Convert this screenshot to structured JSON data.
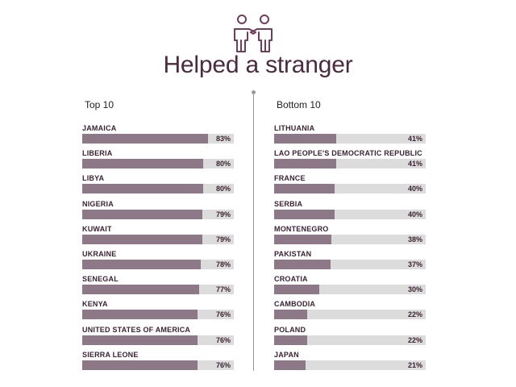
{
  "title": "Helped a stranger",
  "icon": "two-people-shaking-hands-icon",
  "colors": {
    "bar": "#8c7887",
    "track": "#dcdcdc",
    "text": "#3b2232",
    "title": "#4a2b3f"
  },
  "chart_data": [
    {
      "type": "bar",
      "orientation": "horizontal",
      "title": "Top 10",
      "xlim": [
        0,
        100
      ],
      "categories": [
        "JAMAICA",
        "LIBERIA",
        "LIBYA",
        "NIGERIA",
        "KUWAIT",
        "UKRAINE",
        "SENEGAL",
        "KENYA",
        "UNITED STATES OF AMERICA",
        "SIERRA LEONE"
      ],
      "values": [
        83,
        80,
        80,
        79,
        79,
        78,
        77,
        76,
        76,
        76
      ],
      "labels": [
        "83%",
        "80%",
        "80%",
        "79%",
        "79%",
        "78%",
        "77%",
        "76%",
        "76%",
        "76%"
      ]
    },
    {
      "type": "bar",
      "orientation": "horizontal",
      "title": "Bottom 10",
      "xlim": [
        0,
        100
      ],
      "categories": [
        "LITHUANIA",
        "LAO PEOPLE'S DEMOCRATIC REPUBLIC",
        "FRANCE",
        "SERBIA",
        "MONTENEGRO",
        "PAKISTAN",
        "CROATIA",
        "CAMBODIA",
        "POLAND",
        "JAPAN"
      ],
      "values": [
        41,
        41,
        40,
        40,
        38,
        37,
        30,
        22,
        22,
        21
      ],
      "labels": [
        "41%",
        "41%",
        "40%",
        "40%",
        "38%",
        "37%",
        "30%",
        "22%",
        "22%",
        "21%"
      ]
    }
  ]
}
